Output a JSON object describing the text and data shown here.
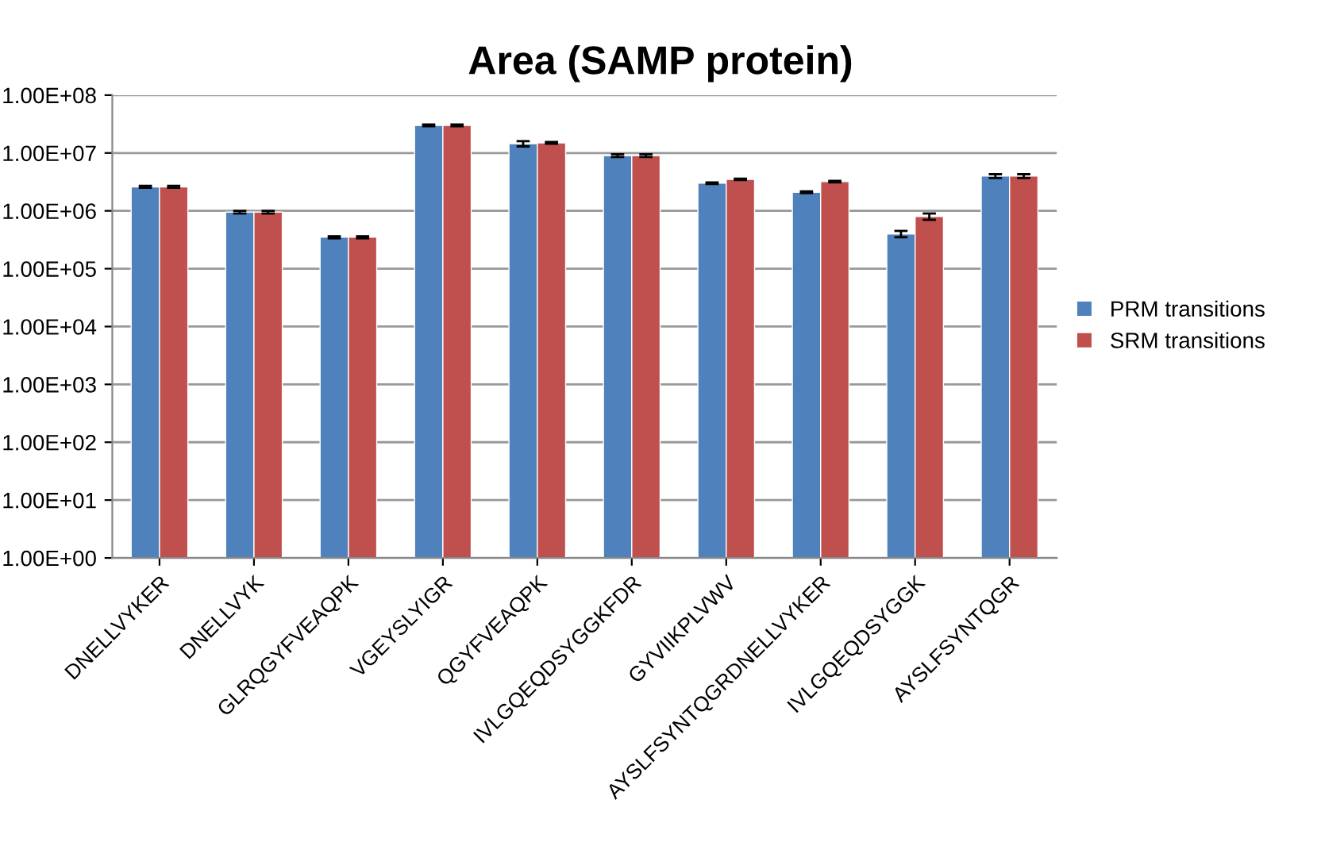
{
  "chart_data": {
    "type": "bar",
    "title": "Area (SAMP protein)",
    "categories": [
      "DNELLVYKER",
      "DNELLVYK",
      "GLRQGYFVEAQPK",
      "VGEYSLYIGR",
      "QGYFVEAQPK",
      "IVLGQEQDSYGGKFDR",
      "GYVIIKPLVWV",
      "AYSLFSYNTQGRDNELLVYKER",
      "IVLGQEQDSYGGK",
      "AYSLFSYNTQGR"
    ],
    "series": [
      {
        "name": "PRM transitions",
        "color": "#4f81bd",
        "values": [
          2600000,
          950000,
          350000,
          30000000,
          14500000,
          9000000,
          3000000,
          2100000,
          400000,
          4000000
        ],
        "errors": [
          100000,
          50000,
          15000,
          1000000,
          1500000,
          500000,
          100000,
          80000,
          50000,
          300000
        ]
      },
      {
        "name": "SRM transitions",
        "color": "#c0504d",
        "values": [
          2600000,
          950000,
          350000,
          30000000,
          15000000,
          9000000,
          3500000,
          3200000,
          800000,
          4000000
        ],
        "errors": [
          100000,
          50000,
          15000,
          1000000,
          500000,
          500000,
          100000,
          100000,
          100000,
          300000
        ]
      }
    ],
    "log": "y",
    "ylim": [
      1,
      100000000
    ],
    "yticks": [
      {
        "value": 1,
        "label": "1.00E+00"
      },
      {
        "value": 10,
        "label": "1.00E+01"
      },
      {
        "value": 100,
        "label": "1.00E+02"
      },
      {
        "value": 1000,
        "label": "1.00E+03"
      },
      {
        "value": 10000,
        "label": "1.00E+04"
      },
      {
        "value": 100000,
        "label": "1.00E+05"
      },
      {
        "value": 1000000,
        "label": "1.00E+06"
      },
      {
        "value": 10000000,
        "label": "1.00E+07"
      },
      {
        "value": 100000000,
        "label": "1.00E+08"
      }
    ],
    "grid": "y",
    "legend": "right"
  }
}
